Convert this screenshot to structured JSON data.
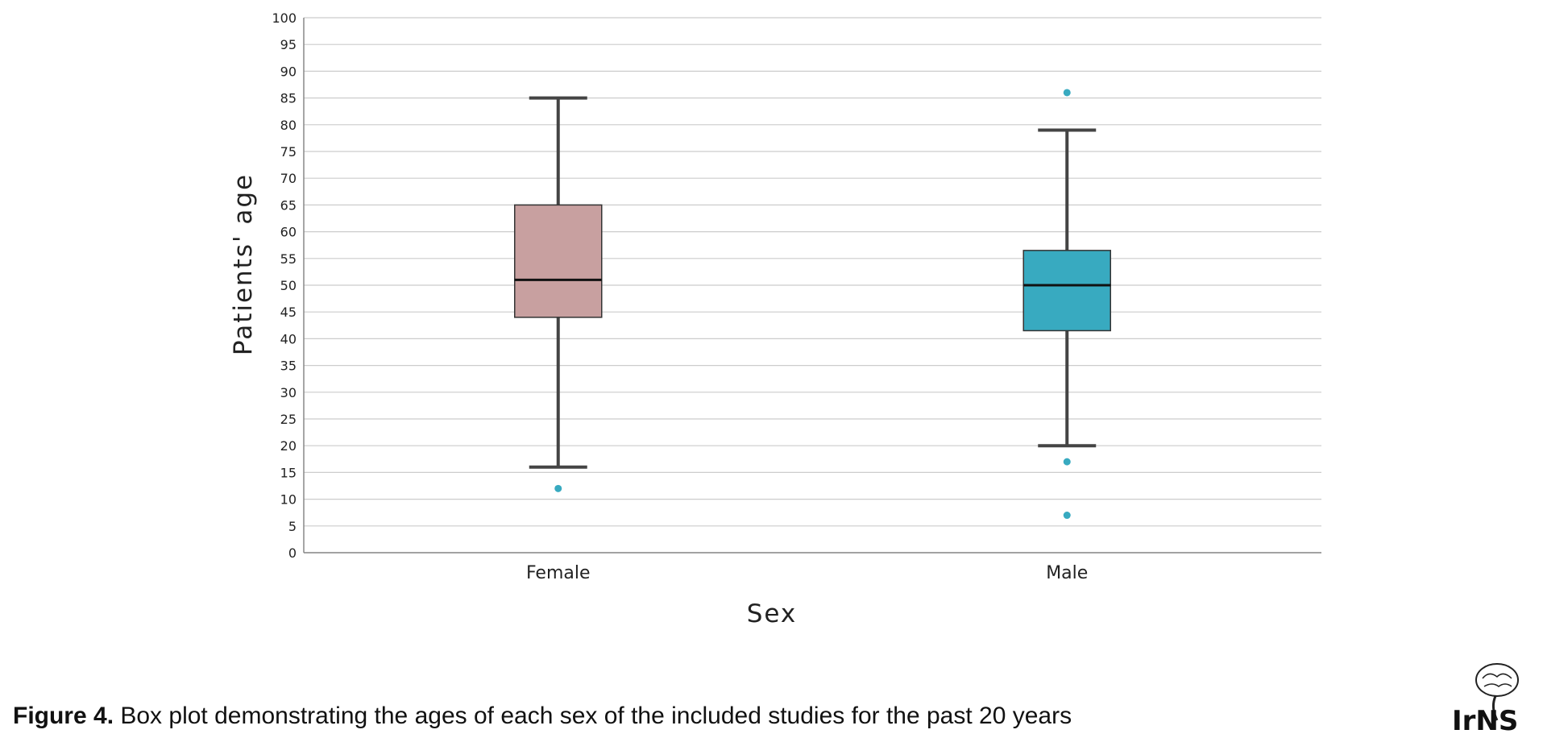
{
  "chart_data": {
    "type": "box",
    "xlabel": "Sex",
    "ylabel": "Patients' age",
    "ylim": [
      0,
      100
    ],
    "ytick_step": 5,
    "grid": true,
    "categories": [
      "Female",
      "Male"
    ],
    "boxes": [
      {
        "category": "Female",
        "whisker_low": 16,
        "q1": 44,
        "median": 51,
        "q3": 65,
        "whisker_high": 85,
        "outliers": [
          12
        ],
        "color": "#c8a0a0"
      },
      {
        "category": "Male",
        "whisker_low": 20,
        "q1": 41.5,
        "median": 50,
        "q3": 56.5,
        "whisker_high": 79,
        "outliers": [
          17,
          7,
          86
        ],
        "color": "#38aac0"
      }
    ],
    "outlier_color": "#38aac0"
  },
  "caption": {
    "label": "Figure 4.",
    "text": " Box plot demonstrating the ages of each sex of the included studies for the past 20 years"
  },
  "logo": {
    "text": "IrNS"
  }
}
